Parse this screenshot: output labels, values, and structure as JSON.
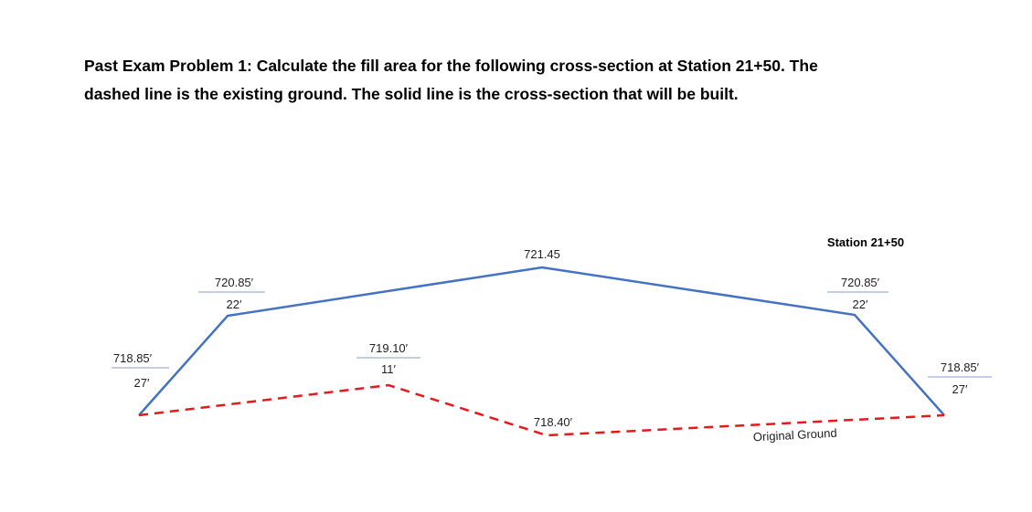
{
  "problem": {
    "lines": [
      "Past Exam Problem 1: Calculate the fill area for the following cross-section at Station 21+50. The",
      "dashed line is the existing ground. The solid line is the cross-section that will be built."
    ]
  },
  "station": "Station 21+50",
  "ground_label": "Original Ground",
  "section": {
    "left_toe": {
      "elevation": "718.85′",
      "offset": "27′"
    },
    "left_shoulder": {
      "elevation": "720.85′",
      "offset": "22′"
    },
    "center": {
      "elevation": "721.45"
    },
    "right_shoulder": {
      "elevation": "720.85′",
      "offset": "22′"
    },
    "right_toe": {
      "elevation": "718.85′",
      "offset": "27′"
    }
  },
  "ground": {
    "left_break": {
      "elevation": "719.10′",
      "offset": "11′"
    },
    "center": {
      "elevation": "718.40′"
    }
  }
}
